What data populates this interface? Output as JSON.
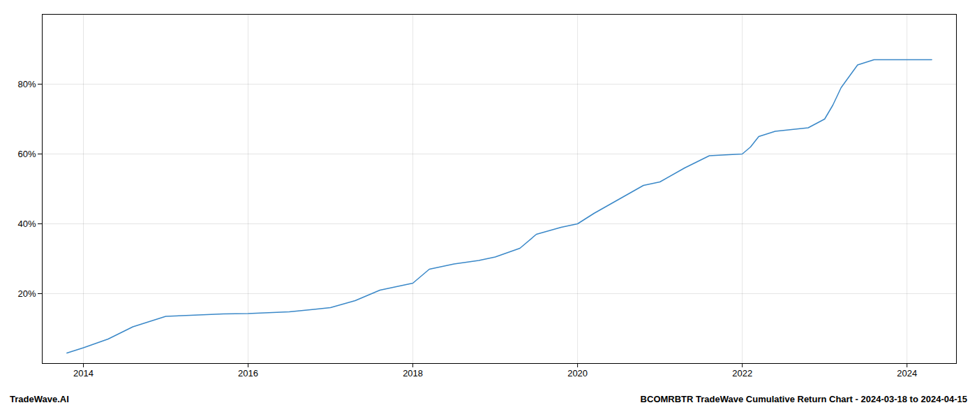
{
  "chart_data": {
    "type": "line",
    "title": "BCOMRBTR TradeWave Cumulative Return Chart - 2024-03-18 to 2024-04-15",
    "annotations": [
      "TradeWave.AI"
    ],
    "color": "#3a88c8",
    "x": [
      2013.8,
      2014.0,
      2014.3,
      2014.6,
      2015.0,
      2015.3,
      2015.5,
      2015.7,
      2016.0,
      2016.2,
      2016.5,
      2016.8,
      2017.0,
      2017.3,
      2017.6,
      2018.0,
      2018.2,
      2018.5,
      2018.8,
      2019.0,
      2019.3,
      2019.5,
      2019.8,
      2020.0,
      2020.2,
      2020.5,
      2020.8,
      2021.0,
      2021.3,
      2021.6,
      2022.0,
      2022.1,
      2022.2,
      2022.4,
      2022.6,
      2022.8,
      2023.0,
      2023.1,
      2023.2,
      2023.4,
      2023.6,
      2023.8,
      2024.0,
      2024.2,
      2024.3
    ],
    "values": [
      3.0,
      4.5,
      7.0,
      10.5,
      13.5,
      13.8,
      14.0,
      14.2,
      14.3,
      14.5,
      14.8,
      15.5,
      16.0,
      18.0,
      21.0,
      23.0,
      27.0,
      28.5,
      29.5,
      30.5,
      33.0,
      37.0,
      39.0,
      40.0,
      43.0,
      47.0,
      51.0,
      52.0,
      56.0,
      59.5,
      60.0,
      62.0,
      65.0,
      66.5,
      67.0,
      67.5,
      70.0,
      74.0,
      79.0,
      85.5,
      87.0,
      87.0,
      87.0,
      87.0,
      87.0
    ],
    "xlim": [
      2013.5,
      2024.6
    ],
    "xticks": [
      2014,
      2016,
      2018,
      2020,
      2022,
      2024
    ],
    "ylim": [
      0,
      100
    ],
    "yticks": [
      {
        "value": 20,
        "label": "20%"
      },
      {
        "value": 40,
        "label": "40%"
      },
      {
        "value": 60,
        "label": "60%"
      },
      {
        "value": 80,
        "label": "80%"
      }
    ],
    "grid": true
  }
}
